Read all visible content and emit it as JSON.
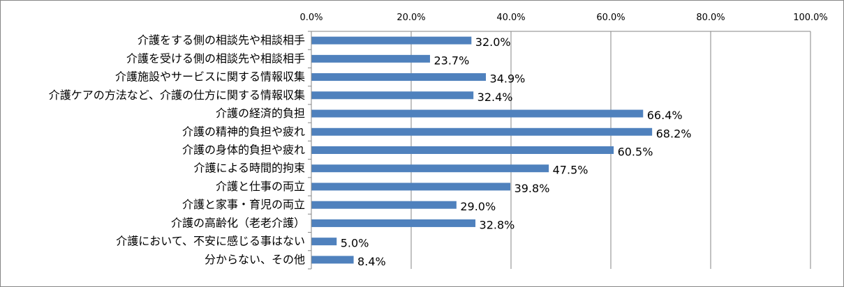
{
  "chart_data": {
    "type": "bar",
    "orientation": "horizontal",
    "categories": [
      "介護をする側の相談先や相談相手",
      "介護を受ける側の相談先や相談相手",
      "介護施設やサービスに関する情報収集",
      "介護ケアの方法など、介護の仕方に関する情報収集",
      "介護の経済的負担",
      "介護の精神的負担や疲れ",
      "介護の身体的負担や疲れ",
      "介護による時間的拘束",
      "介護と仕事の両立",
      "介護と家事・育児の両立",
      "介護の高齢化（老老介護）",
      "介護において、不安に感じる事はない",
      "分からない、その他"
    ],
    "values": [
      32.0,
      23.7,
      34.9,
      32.4,
      66.4,
      68.2,
      60.5,
      47.5,
      39.8,
      29.0,
      32.8,
      5.0,
      8.4
    ],
    "value_labels": [
      "32.0%",
      "23.7%",
      "34.9%",
      "32.4%",
      "66.4%",
      "68.2%",
      "60.5%",
      "47.5%",
      "39.8%",
      "29.0%",
      "32.8%",
      "5.0%",
      "8.4%"
    ],
    "xlim": [
      0,
      100
    ],
    "x_ticks": [
      0,
      20,
      40,
      60,
      80,
      100
    ],
    "x_tick_labels": [
      "0.0%",
      "20.0%",
      "40.0%",
      "60.0%",
      "80.0%",
      "100.0%"
    ],
    "x_axis_position": "top",
    "grid": "vertical",
    "legend": "none",
    "title": "",
    "xlabel": "",
    "ylabel": "",
    "bar_color": "#4f81bd"
  }
}
